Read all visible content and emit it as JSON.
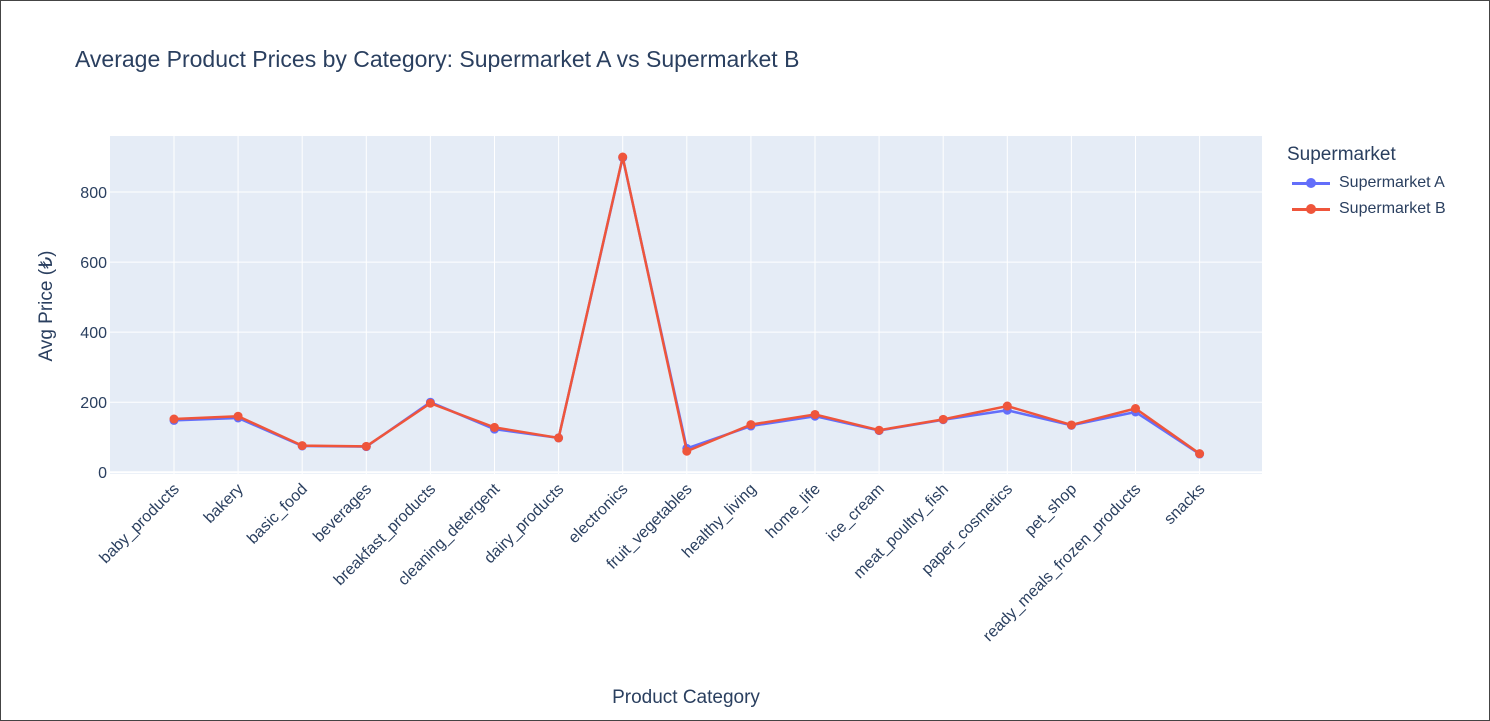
{
  "chart_data": {
    "type": "line",
    "title": "Average Product Prices by Category: Supermarket A vs Supermarket B",
    "xlabel": "Product Category",
    "ylabel": "Avg Price (₺)",
    "ylim": [
      -5,
      960
    ],
    "yticks": [
      0,
      200,
      400,
      600,
      800
    ],
    "grid": true,
    "legend": {
      "title": "Supermarket",
      "placement": "right-top"
    },
    "categories": [
      "baby_products",
      "bakery",
      "basic_food",
      "beverages",
      "breakfast_products",
      "cleaning_detergent",
      "dairy_products",
      "electronics",
      "fruit_vegetables",
      "healthy_living",
      "home_life",
      "ice_cream",
      "meat_poultry_fish",
      "paper_cosmetics",
      "pet_shop",
      "ready_meals_frozen_products",
      "snacks"
    ],
    "series": [
      {
        "name": "Supermarket A",
        "color": "#636efa",
        "values": [
          148,
          155,
          75,
          73,
          200,
          123,
          98,
          898,
          68,
          132,
          160,
          119,
          150,
          177,
          134,
          172,
          52
        ]
      },
      {
        "name": "Supermarket B",
        "color": "#ef553b",
        "values": [
          152,
          160,
          76,
          74,
          197,
          128,
          98,
          900,
          60,
          136,
          165,
          120,
          151,
          189,
          135,
          182,
          53
        ]
      }
    ]
  }
}
